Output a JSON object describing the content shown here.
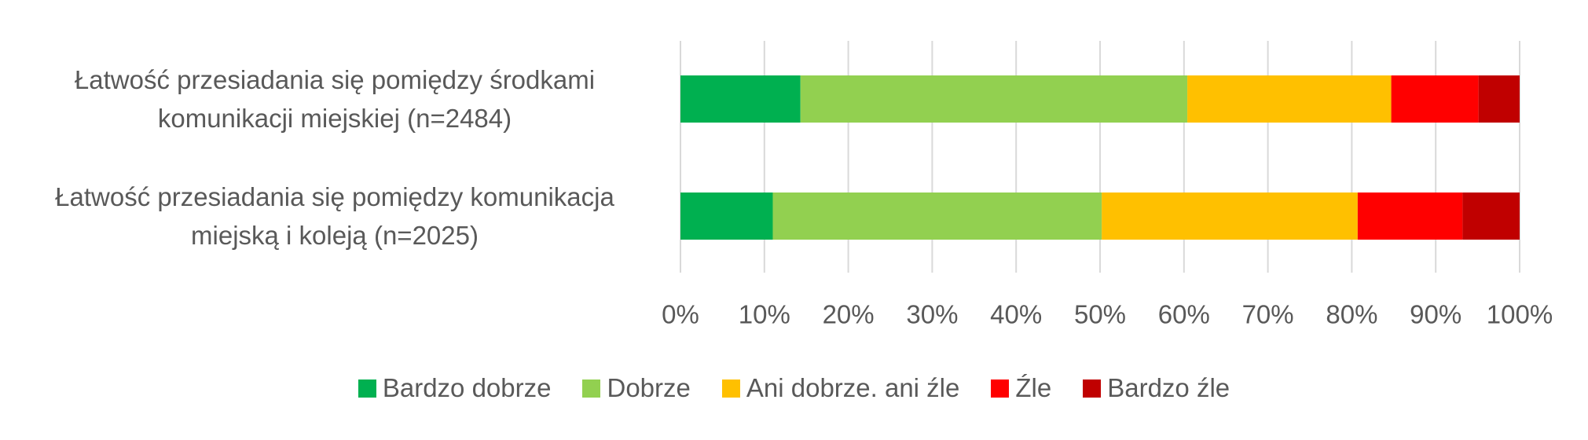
{
  "chart_data": {
    "type": "stacked_bar_horizontal",
    "categories": [
      "Łatwość przesiadania się pomiędzy środkami\nkomunikacji miejskiej (n=2484)",
      "Łatwość przesiadania się pomiędzy komunikacja\nmiejską i koleją (n=2025)"
    ],
    "series": [
      {
        "name": "Bardzo dobrze",
        "color": "#00b050",
        "values": [
          14.3,
          11.0
        ]
      },
      {
        "name": "Dobrze",
        "color": "#92d050",
        "values": [
          46.1,
          39.2
        ]
      },
      {
        "name": "Ani dobrze. ani źle",
        "color": "#ffc000",
        "values": [
          24.3,
          30.5
        ]
      },
      {
        "name": "Źle",
        "color": "#ff0000",
        "values": [
          10.4,
          12.5
        ]
      },
      {
        "name": "Bardzo źle",
        "color": "#c00000",
        "values": [
          4.9,
          6.8
        ]
      }
    ],
    "xlim": [
      0,
      100
    ],
    "xticks": [
      {
        "value": 0,
        "label": "0%"
      },
      {
        "value": 10,
        "label": "10%"
      },
      {
        "value": 20,
        "label": "20%"
      },
      {
        "value": 30,
        "label": "30%"
      },
      {
        "value": 40,
        "label": "40%"
      },
      {
        "value": 50,
        "label": "50%"
      },
      {
        "value": 60,
        "label": "60%"
      },
      {
        "value": 70,
        "label": "70%"
      },
      {
        "value": 80,
        "label": "80%"
      },
      {
        "value": 90,
        "label": "90%"
      },
      {
        "value": 100,
        "label": "100%"
      }
    ],
    "grid": true,
    "legend": "bottom"
  }
}
